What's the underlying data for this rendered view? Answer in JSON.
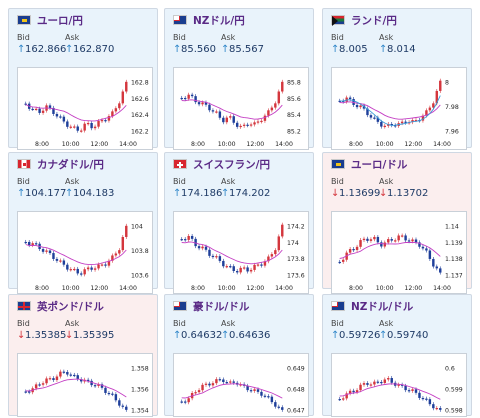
{
  "labels": {
    "bid": "Bid",
    "ask": "Ask"
  },
  "cards": [
    {
      "id": "eur-jpy",
      "title": "ユーロ/円",
      "flag": "eu",
      "bg": "blue",
      "bid": "162.866",
      "ask": "162.870",
      "bid_dir": "up",
      "ask_dir": "up",
      "yticks": [
        "162.8",
        "162.6",
        "162.4",
        "162.2"
      ],
      "xticks": [
        "8:00",
        "10:00",
        "12:00",
        "14:00"
      ]
    },
    {
      "id": "nzd-jpy",
      "title": "NZドル/円",
      "flag": "nz",
      "bg": "blue",
      "bid": "85.560",
      "ask": "85.567",
      "bid_dir": "up",
      "ask_dir": "up",
      "yticks": [
        "85.8",
        "85.6",
        "85.4",
        "85.2"
      ],
      "xticks": [
        "8:00",
        "10:00",
        "12:00",
        "14:00"
      ]
    },
    {
      "id": "zar-jpy",
      "title": "ランド/円",
      "flag": "za",
      "bg": "blue",
      "bid": "8.005",
      "ask": "8.014",
      "bid_dir": "up",
      "ask_dir": "up",
      "yticks": [
        "8",
        "7.98",
        "7.96"
      ],
      "xticks": [
        "8:00",
        "10:00",
        "12:00",
        "14:00"
      ]
    },
    {
      "id": "cad-jpy",
      "title": "カナダドル/円",
      "flag": "ca",
      "bg": "blue",
      "bid": "104.177",
      "ask": "104.183",
      "bid_dir": "up",
      "ask_dir": "up",
      "yticks": [
        "104",
        "103.8",
        "103.6"
      ],
      "xticks": [
        "8:00",
        "10:00",
        "12:00",
        "14:00"
      ]
    },
    {
      "id": "chf-jpy",
      "title": "スイスフラン/円",
      "flag": "ch",
      "bg": "blue",
      "bid": "174.186",
      "ask": "174.202",
      "bid_dir": "up",
      "ask_dir": "up",
      "yticks": [
        "174.2",
        "174",
        "173.8",
        "173.6"
      ],
      "xticks": [
        "8:00",
        "10:00",
        "12:00",
        "14:00"
      ]
    },
    {
      "id": "eur-usd",
      "title": "ユーロ/ドル",
      "flag": "eu",
      "bg": "pink",
      "bid": "1.13699",
      "ask": "1.13702",
      "bid_dir": "down",
      "ask_dir": "down",
      "yticks": [
        "1.14",
        "1.139",
        "1.138",
        "1.137"
      ],
      "xticks": [
        "8:00",
        "10:00",
        "12:00",
        "14:00"
      ]
    },
    {
      "id": "gbp-usd",
      "title": "英ポンド/ドル",
      "flag": "uk",
      "bg": "pink",
      "bid": "1.35385",
      "ask": "1.35395",
      "bid_dir": "down",
      "ask_dir": "down",
      "yticks": [
        "1.358",
        "1.356",
        "1.354"
      ],
      "xticks": []
    },
    {
      "id": "aud-usd",
      "title": "豪ドル/ドル",
      "flag": "au",
      "bg": "blue",
      "bid": "0.64632",
      "ask": "0.64636",
      "bid_dir": "up",
      "ask_dir": "up",
      "yticks": [
        "0.649",
        "0.648",
        "0.647"
      ],
      "xticks": []
    },
    {
      "id": "nzd-usd",
      "title": "NZドル/ドル",
      "flag": "nz",
      "bg": "blue",
      "bid": "0.59726",
      "ask": "0.59740",
      "bid_dir": "up",
      "ask_dir": "up",
      "yticks": [
        "0.6",
        "0.599",
        "0.598"
      ],
      "xticks": []
    }
  ],
  "colors": {
    "up_candle": "#d4363d",
    "down_candle": "#1f3f9a",
    "ma_line": "#c43fc4",
    "ma2_line": "#3a9ad9",
    "up_arrow": "#2f86c9",
    "down_arrow": "#d4363d",
    "title": "#5a2a86"
  }
}
